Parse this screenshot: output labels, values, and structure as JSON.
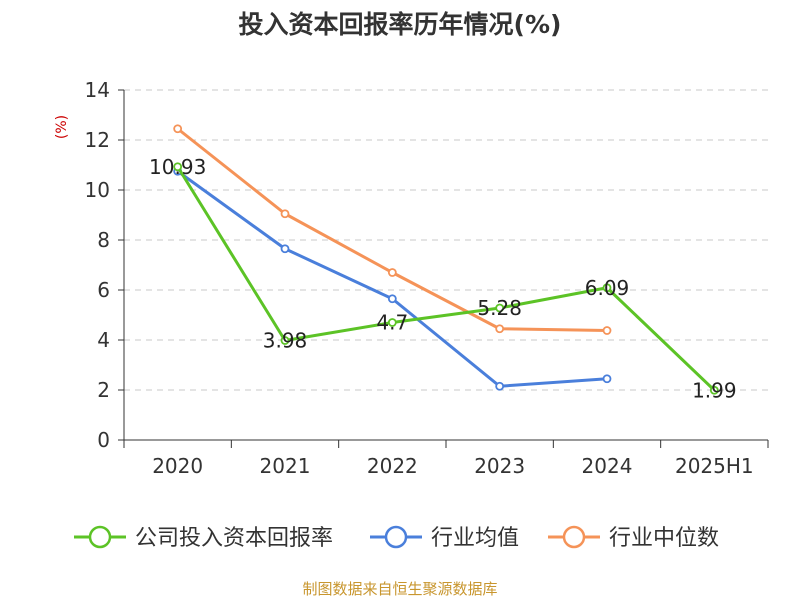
{
  "chart_data": {
    "type": "line",
    "title": "投入资本回报率历年情况(%)",
    "ylabel": "(%)",
    "xlabel": "",
    "categories": [
      "2020",
      "2021",
      "2022",
      "2023",
      "2024",
      "2025H1"
    ],
    "ylim": [
      0,
      14
    ],
    "yticks": [
      0,
      2,
      4,
      6,
      8,
      10,
      12,
      14
    ],
    "grid": true,
    "legend_position": "bottom",
    "series": [
      {
        "name": "公司投入资本回报率",
        "color": "#5cc326",
        "show_labels": true,
        "values": [
          10.93,
          3.98,
          4.7,
          5.28,
          6.09,
          1.99
        ],
        "labels": [
          "10.93",
          "3.98",
          "4.7",
          "5.28",
          "6.09",
          "1.99"
        ]
      },
      {
        "name": "行业均值",
        "color": "#4a7fdb",
        "show_labels": false,
        "values": [
          10.75,
          7.65,
          5.65,
          2.15,
          2.45,
          null
        ]
      },
      {
        "name": "行业中位数",
        "color": "#f59358",
        "show_labels": false,
        "values": [
          12.45,
          9.05,
          6.7,
          4.45,
          4.38,
          null
        ]
      }
    ]
  },
  "source": "制图数据来自恒生聚源数据库"
}
